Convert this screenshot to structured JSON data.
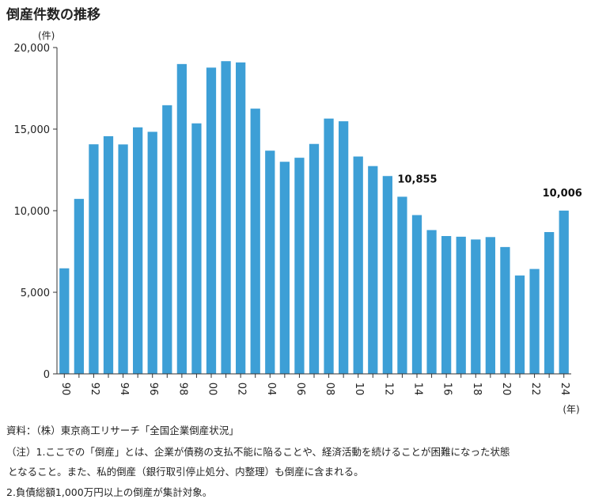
{
  "title": "倒産件数の推移",
  "chart_data": {
    "type": "bar",
    "title": "倒産件数の推移",
    "y_unit": "(件)",
    "x_unit": "(年)",
    "ylim": [
      0,
      20000
    ],
    "yticks": [
      0,
      5000,
      10000,
      15000,
      20000
    ],
    "ytick_labels": [
      "0",
      "5,000",
      "10,000",
      "15,000",
      "20,000"
    ],
    "grid": false,
    "bar_color": "#3d9fd6",
    "categories": [
      "90",
      "91",
      "92",
      "93",
      "94",
      "95",
      "96",
      "97",
      "98",
      "99",
      "00",
      "01",
      "02",
      "03",
      "04",
      "05",
      "06",
      "07",
      "08",
      "09",
      "10",
      "11",
      "12",
      "13",
      "14",
      "15",
      "16",
      "17",
      "18",
      "19",
      "20",
      "21",
      "22",
      "23",
      "24"
    ],
    "xtick_labels": [
      "90",
      "",
      "92",
      "",
      "94",
      "",
      "96",
      "",
      "98",
      "",
      "00",
      "",
      "02",
      "",
      "04",
      "",
      "06",
      "",
      "08",
      "",
      "10",
      "",
      "12",
      "",
      "14",
      "",
      "16",
      "",
      "18",
      "",
      "20",
      "",
      "22",
      "",
      "24"
    ],
    "values": [
      6468,
      10723,
      14069,
      14564,
      14061,
      15108,
      14834,
      16464,
      18988,
      15352,
      18769,
      19164,
      19087,
      16255,
      13679,
      12998,
      13245,
      14091,
      15646,
      15480,
      13321,
      12734,
      12124,
      10855,
      9731,
      8812,
      8446,
      8405,
      8235,
      8383,
      7773,
      6030,
      6428,
      8690,
      10006
    ],
    "annotations": [
      {
        "category": "13",
        "label": "10,855"
      },
      {
        "category": "24",
        "label": "10,006"
      }
    ]
  },
  "notes": {
    "source": "資料：（株）東京商工リサーチ「全国企業倒産状況」",
    "note1_line1": "（注）1.ここでの「倒産」とは、企業が債務の支払不能に陥ることや、経済活動を続けることが困難になった状態",
    "note1_line2": "となること。また、私的倒産（銀行取引停止処分、内整理）も倒産に含まれる。",
    "note2": "2.負債総額1,000万円以上の倒産が集計対象。"
  }
}
